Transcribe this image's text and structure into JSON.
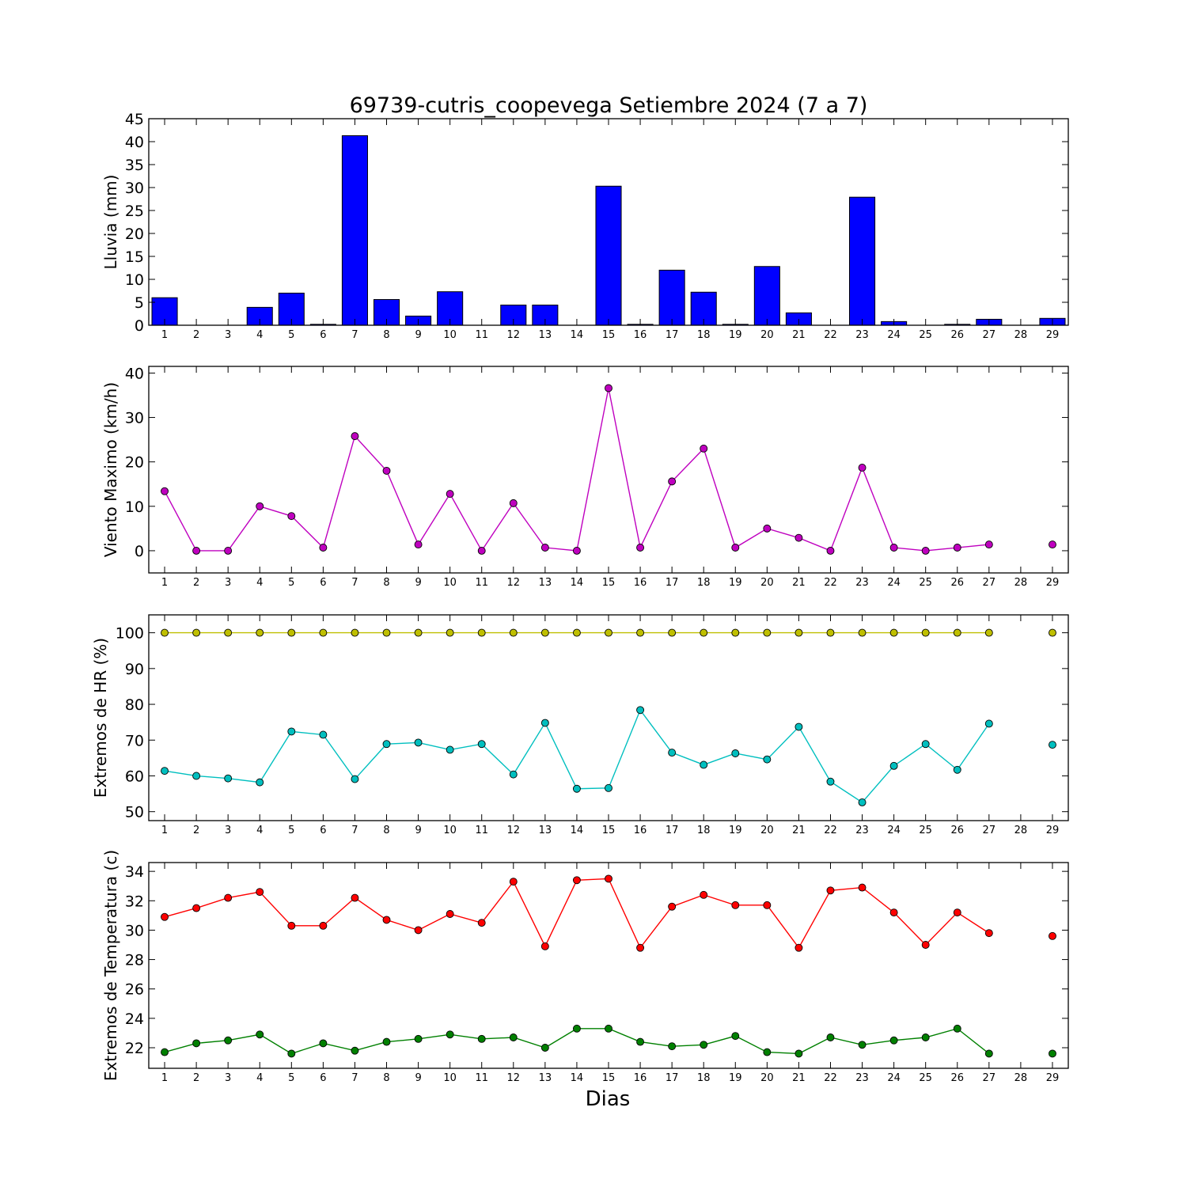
{
  "title": "69739-cutris_coopevega Setiembre 2024  (7 a 7)",
  "xlabel": "Dias",
  "chart_data": [
    {
      "type": "bar",
      "ylabel": "Lluvia (mm)",
      "color": "#0000ff",
      "x": [
        1,
        2,
        3,
        4,
        5,
        6,
        7,
        8,
        9,
        10,
        11,
        12,
        13,
        14,
        15,
        16,
        17,
        18,
        19,
        20,
        21,
        22,
        23,
        24,
        25,
        26,
        27,
        28,
        29
      ],
      "xticks": [
        1,
        2,
        3,
        4,
        5,
        6,
        7,
        8,
        9,
        10,
        11,
        12,
        13,
        14,
        15,
        16,
        17,
        18,
        19,
        20,
        21,
        22,
        23,
        24,
        25,
        26,
        27,
        28,
        29
      ],
      "values": [
        6.0,
        0,
        0,
        3.9,
        7.0,
        0.2,
        41.3,
        5.6,
        2.0,
        7.3,
        0,
        4.4,
        4.4,
        0,
        30.3,
        0.2,
        12.0,
        7.2,
        0.2,
        12.8,
        2.7,
        0,
        27.9,
        0.8,
        0,
        0.2,
        1.3,
        null,
        1.5
      ],
      "yticks": [
        0,
        5,
        10,
        15,
        20,
        25,
        30,
        35,
        40,
        45
      ],
      "ylim": [
        0,
        45
      ]
    },
    {
      "type": "line",
      "ylabel": "Viento Maximo (km/h)",
      "x": [
        1,
        2,
        3,
        4,
        5,
        6,
        7,
        8,
        9,
        10,
        11,
        12,
        13,
        14,
        15,
        16,
        17,
        18,
        19,
        20,
        21,
        22,
        23,
        24,
        25,
        26,
        27,
        28,
        29
      ],
      "xticks": [
        1,
        2,
        3,
        4,
        5,
        6,
        7,
        8,
        9,
        10,
        11,
        12,
        13,
        14,
        15,
        16,
        17,
        18,
        19,
        20,
        21,
        22,
        23,
        24,
        25,
        26,
        27,
        28,
        29
      ],
      "series": [
        {
          "color": "#bf00bf",
          "values": [
            13.4,
            0,
            0,
            10.0,
            7.8,
            0.7,
            25.8,
            18.0,
            1.4,
            12.8,
            0,
            10.7,
            0.7,
            0,
            36.6,
            0.7,
            15.6,
            23.0,
            0.7,
            5.0,
            2.9,
            0,
            18.7,
            0.7,
            0,
            0.7,
            1.4,
            null,
            1.4
          ]
        }
      ],
      "yticks": [
        0,
        10,
        20,
        30,
        40
      ],
      "ylim": [
        -5,
        41.5
      ]
    },
    {
      "type": "line",
      "ylabel": "Extremos de HR (%)",
      "x": [
        1,
        2,
        3,
        4,
        5,
        6,
        7,
        8,
        9,
        10,
        11,
        12,
        13,
        14,
        15,
        16,
        17,
        18,
        19,
        20,
        21,
        22,
        23,
        24,
        25,
        26,
        27,
        28,
        29
      ],
      "xticks": [
        1,
        2,
        3,
        4,
        5,
        6,
        7,
        8,
        9,
        10,
        11,
        12,
        13,
        14,
        15,
        16,
        17,
        18,
        19,
        20,
        21,
        22,
        23,
        24,
        25,
        26,
        27,
        28,
        29
      ],
      "series": [
        {
          "color": "#bfbf00",
          "values": [
            100,
            100,
            100,
            100,
            100,
            100,
            100,
            100,
            100,
            100,
            100,
            100,
            100,
            100,
            100,
            100,
            100,
            100,
            100,
            100,
            100,
            100,
            100,
            100,
            100,
            100,
            100,
            null,
            100
          ]
        },
        {
          "color": "#00bfbf",
          "values": [
            61.4,
            60.0,
            59.3,
            58.2,
            72.4,
            71.5,
            59.1,
            68.9,
            69.3,
            67.3,
            68.9,
            60.4,
            74.8,
            56.4,
            56.6,
            78.4,
            66.5,
            63.1,
            66.3,
            64.6,
            73.7,
            58.4,
            52.6,
            62.8,
            68.9,
            61.7,
            74.6,
            null,
            68.7
          ]
        }
      ],
      "yticks": [
        50,
        60,
        70,
        80,
        90,
        100
      ],
      "ylim": [
        47.5,
        105
      ]
    },
    {
      "type": "line",
      "ylabel": "Extremos de Temperatura (c)",
      "x": [
        1,
        2,
        3,
        4,
        5,
        6,
        7,
        8,
        9,
        10,
        11,
        12,
        13,
        14,
        15,
        16,
        17,
        18,
        19,
        20,
        21,
        22,
        23,
        24,
        25,
        26,
        27,
        28,
        29
      ],
      "xticks": [
        1,
        2,
        3,
        4,
        5,
        6,
        7,
        8,
        9,
        10,
        11,
        12,
        13,
        14,
        15,
        16,
        17,
        18,
        19,
        20,
        21,
        22,
        23,
        24,
        25,
        26,
        27,
        28,
        29
      ],
      "series": [
        {
          "color": "#ff0000",
          "values": [
            30.9,
            31.5,
            32.2,
            32.6,
            30.3,
            30.3,
            32.2,
            30.7,
            30.0,
            31.1,
            30.5,
            33.3,
            28.9,
            33.4,
            33.5,
            28.8,
            31.6,
            32.4,
            31.7,
            31.7,
            28.8,
            32.7,
            32.9,
            31.2,
            29.0,
            31.2,
            29.8,
            null,
            29.6
          ]
        },
        {
          "color": "#008000",
          "values": [
            21.7,
            22.3,
            22.5,
            22.9,
            21.6,
            22.3,
            21.8,
            22.4,
            22.6,
            22.9,
            22.6,
            22.7,
            22.0,
            23.3,
            23.3,
            22.4,
            22.1,
            22.2,
            22.8,
            21.7,
            21.6,
            22.7,
            22.2,
            22.5,
            22.7,
            23.3,
            21.6,
            null,
            21.6
          ]
        }
      ],
      "yticks": [
        22,
        24,
        26,
        28,
        30,
        32,
        34
      ],
      "ylim": [
        20.6,
        34.6
      ]
    }
  ]
}
